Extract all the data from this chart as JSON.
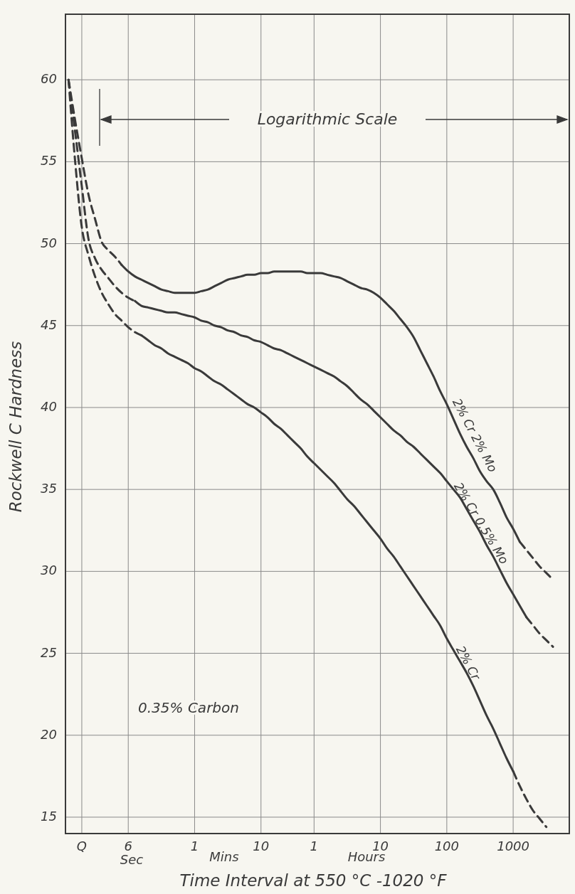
{
  "chart_data": {
    "type": "line",
    "xlabel": "Time Interval at 550 °C -1020 °F",
    "ylabel": "Rockwell C Hardness",
    "grid": true,
    "ylim": [
      14,
      64
    ],
    "yticks": [
      15,
      20,
      25,
      30,
      35,
      40,
      45,
      50,
      55,
      60
    ],
    "categories": [
      null,
      null,
      "Q",
      null,
      null,
      null,
      null,
      null,
      null,
      "6",
      null,
      null,
      null,
      null,
      null,
      null,
      null,
      null,
      null,
      "1",
      null,
      null,
      null,
      null,
      null,
      null,
      null,
      null,
      null,
      "10",
      null,
      null,
      null,
      null,
      null,
      null,
      null,
      "1",
      null,
      null,
      null,
      null,
      null,
      null,
      null,
      null,
      null,
      "10",
      null,
      null,
      null,
      null,
      null,
      null,
      null,
      null,
      null,
      "100",
      null,
      null,
      null,
      null,
      null,
      null,
      null,
      null,
      null,
      "1000",
      null,
      null,
      null,
      null,
      null,
      null,
      null,
      null
    ],
    "annotations": [
      "Logarithmic Scale",
      "0.35% Carbon",
      "Sec",
      "Mins",
      "Hours"
    ],
    "series": [
      {
        "color": "#3a3a3a",
        "line_style": "dashed",
        "values": [
          60,
          57.5,
          55.2,
          53.0,
          51.5,
          50.1,
          49.6,
          49.2,
          48.7,
          null,
          null,
          null,
          null,
          null,
          null,
          null,
          null,
          null,
          null,
          null,
          null,
          null,
          null,
          null,
          null,
          null,
          null,
          null,
          null,
          null,
          null,
          null,
          null,
          null,
          null,
          null,
          null,
          null,
          null,
          null,
          null,
          null,
          null,
          null,
          null,
          null,
          null,
          null,
          null,
          null,
          null,
          null,
          null,
          null,
          null,
          null,
          null,
          null,
          null,
          null,
          null,
          null,
          null,
          null,
          null,
          null,
          null,
          null,
          null,
          null,
          null,
          null,
          null,
          null,
          null,
          null
        ]
      },
      {
        "name": "2% Cr 2% Mo",
        "color": "#3a3a3a",
        "line_style": "solid",
        "values": [
          null,
          null,
          null,
          null,
          null,
          null,
          null,
          null,
          48.7,
          48.3,
          48.0,
          47.8,
          47.6,
          47.4,
          47.2,
          47.1,
          47.0,
          47.0,
          47.0,
          47.0,
          47.1,
          47.2,
          47.4,
          47.6,
          47.8,
          47.9,
          48.0,
          48.1,
          48.1,
          48.2,
          48.2,
          48.3,
          48.3,
          48.3,
          48.3,
          48.3,
          48.2,
          48.2,
          48.2,
          48.1,
          48.0,
          47.9,
          47.7,
          47.5,
          47.3,
          47.2,
          47.0,
          46.7,
          46.3,
          45.9,
          45.4,
          44.9,
          44.3,
          43.5,
          42.7,
          41.9,
          41.0,
          40.2,
          39.3,
          38.4,
          37.6,
          36.9,
          36.1,
          35.5,
          35.0,
          34.2,
          33.3,
          32.6,
          31.8,
          null,
          null,
          null,
          null,
          null,
          null,
          null
        ]
      },
      {
        "color": "#3a3a3a",
        "line_style": "dashed",
        "values": [
          null,
          null,
          null,
          null,
          null,
          null,
          null,
          null,
          null,
          null,
          null,
          null,
          null,
          null,
          null,
          null,
          null,
          null,
          null,
          null,
          null,
          null,
          null,
          null,
          null,
          null,
          null,
          null,
          null,
          null,
          null,
          null,
          null,
          null,
          null,
          null,
          null,
          null,
          null,
          null,
          null,
          null,
          null,
          null,
          null,
          null,
          null,
          null,
          null,
          null,
          null,
          null,
          null,
          null,
          null,
          null,
          null,
          null,
          null,
          null,
          null,
          null,
          null,
          null,
          null,
          null,
          null,
          null,
          31.8,
          31.3,
          30.8,
          30.3,
          29.9,
          29.5,
          null,
          null
        ]
      },
      {
        "color": "#3a3a3a",
        "line_style": "dashed",
        "values": [
          60,
          56.8,
          53.5,
          50.3,
          49.1,
          48.4,
          47.9,
          47.4,
          47.0,
          46.7,
          46.5,
          null,
          null,
          null,
          null,
          null,
          null,
          null,
          null,
          null,
          null,
          null,
          null,
          null,
          null,
          null,
          null,
          null,
          null,
          null,
          null,
          null,
          null,
          null,
          null,
          null,
          null,
          null,
          null,
          null,
          null,
          null,
          null,
          null,
          null,
          null,
          null,
          null,
          null,
          null,
          null,
          null,
          null,
          null,
          null,
          null,
          null,
          null,
          null,
          null,
          null,
          null,
          null,
          null,
          null,
          null,
          null,
          null,
          null,
          null,
          null,
          null,
          null,
          null,
          null,
          null
        ]
      },
      {
        "name": "2% Cr 0.5% Mo",
        "color": "#3a3a3a",
        "line_style": "solid",
        "values": [
          null,
          null,
          null,
          null,
          null,
          null,
          null,
          null,
          null,
          null,
          46.5,
          46.2,
          46.1,
          46.0,
          45.9,
          45.8,
          45.8,
          45.7,
          45.6,
          45.5,
          45.3,
          45.2,
          45.0,
          44.9,
          44.7,
          44.6,
          44.4,
          44.3,
          44.1,
          44.0,
          43.8,
          43.6,
          43.5,
          43.3,
          43.1,
          42.9,
          42.7,
          42.5,
          42.3,
          42.1,
          41.9,
          41.6,
          41.3,
          40.9,
          40.5,
          40.2,
          39.8,
          39.4,
          39.0,
          38.6,
          38.3,
          37.9,
          37.6,
          37.2,
          36.8,
          36.4,
          36.0,
          35.5,
          35.0,
          34.5,
          33.8,
          33.1,
          32.4,
          31.6,
          30.9,
          30.1,
          29.3,
          28.6,
          27.9,
          27.2,
          null,
          null,
          null,
          null,
          null,
          null
        ]
      },
      {
        "color": "#3a3a3a",
        "line_style": "dashed",
        "values": [
          null,
          null,
          null,
          null,
          null,
          null,
          null,
          null,
          null,
          null,
          null,
          null,
          null,
          null,
          null,
          null,
          null,
          null,
          null,
          null,
          null,
          null,
          null,
          null,
          null,
          null,
          null,
          null,
          null,
          null,
          null,
          null,
          null,
          null,
          null,
          null,
          null,
          null,
          null,
          null,
          null,
          null,
          null,
          null,
          null,
          null,
          null,
          null,
          null,
          null,
          null,
          null,
          null,
          null,
          null,
          null,
          null,
          null,
          null,
          null,
          null,
          null,
          null,
          null,
          null,
          null,
          null,
          null,
          null,
          27.2,
          26.7,
          26.2,
          25.8,
          25.4,
          null,
          null
        ]
      },
      {
        "color": "#3a3a3a",
        "line_style": "dashed",
        "values": [
          60,
          55.0,
          51.0,
          49.3,
          48.0,
          47.0,
          46.3,
          45.7,
          45.3,
          44.9,
          44.6,
          44.4,
          null,
          null,
          null,
          null,
          null,
          null,
          null,
          null,
          null,
          null,
          null,
          null,
          null,
          null,
          null,
          null,
          null,
          null,
          null,
          null,
          null,
          null,
          null,
          null,
          null,
          null,
          null,
          null,
          null,
          null,
          null,
          null,
          null,
          null,
          null,
          null,
          null,
          null,
          null,
          null,
          null,
          null,
          null,
          null,
          null,
          null,
          null,
          null,
          null,
          null,
          null,
          null,
          null,
          null,
          null,
          null,
          null,
          null,
          null,
          null,
          null,
          null,
          null,
          null
        ]
      },
      {
        "name": "2% Cr",
        "color": "#3a3a3a",
        "line_style": "solid",
        "values": [
          null,
          null,
          null,
          null,
          null,
          null,
          null,
          null,
          null,
          null,
          null,
          44.4,
          44.1,
          43.8,
          43.6,
          43.3,
          43.1,
          42.9,
          42.7,
          42.4,
          42.2,
          41.9,
          41.6,
          41.4,
          41.1,
          40.8,
          40.5,
          40.2,
          40.0,
          39.7,
          39.4,
          39.0,
          38.7,
          38.3,
          37.9,
          37.5,
          37.0,
          36.6,
          36.2,
          35.8,
          35.4,
          34.9,
          34.4,
          34.0,
          33.5,
          33.0,
          32.5,
          32.0,
          31.4,
          30.9,
          30.3,
          29.7,
          29.1,
          28.5,
          27.9,
          27.3,
          26.7,
          25.9,
          25.2,
          24.5,
          23.8,
          23.0,
          22.1,
          21.2,
          20.4,
          19.5,
          18.6,
          17.8,
          null,
          null,
          null,
          null,
          null,
          null,
          null,
          null
        ]
      },
      {
        "color": "#3a3a3a",
        "line_style": "dashed",
        "values": [
          null,
          null,
          null,
          null,
          null,
          null,
          null,
          null,
          null,
          null,
          null,
          null,
          null,
          null,
          null,
          null,
          null,
          null,
          null,
          null,
          null,
          null,
          null,
          null,
          null,
          null,
          null,
          null,
          null,
          null,
          null,
          null,
          null,
          null,
          null,
          null,
          null,
          null,
          null,
          null,
          null,
          null,
          null,
          null,
          null,
          null,
          null,
          null,
          null,
          null,
          null,
          null,
          null,
          null,
          null,
          null,
          null,
          null,
          null,
          null,
          null,
          null,
          null,
          null,
          null,
          null,
          null,
          17.8,
          16.9,
          16.1,
          15.4,
          14.9,
          14.4,
          null,
          null,
          null
        ]
      }
    ]
  }
}
